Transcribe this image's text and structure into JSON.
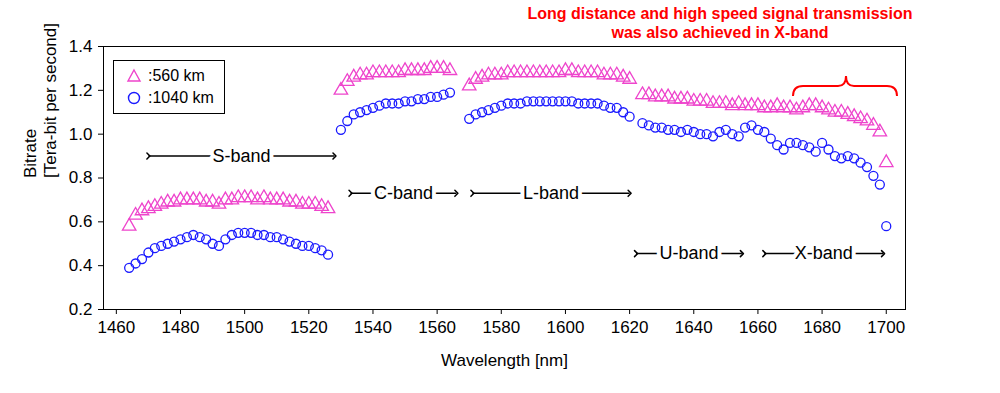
{
  "chart_data": {
    "type": "scatter",
    "x_label": "Wavelength [nm]",
    "y_label": "Bitrate\n[Tera-bit per second]",
    "annotation": "Long distance and high speed signal transmission was also achieved in X-band",
    "xlim": [
      1456,
      1706
    ],
    "xticks": [
      1460,
      1480,
      1500,
      1520,
      1540,
      1560,
      1580,
      1600,
      1620,
      1640,
      1660,
      1680,
      1700
    ],
    "ylim": [
      0.2,
      1.4
    ],
    "yticks": [
      0.2,
      0.4,
      0.6,
      0.8,
      {
        "value": 1,
        "label": "1.0"
      },
      1.2,
      1.4
    ],
    "grid": false,
    "legend": "top-left",
    "bands": [
      {
        "label": "S-band",
        "start": 1470,
        "end": 1528
      },
      {
        "label": "C-band",
        "start": 1533,
        "end": 1566
      },
      {
        "label": "L-band",
        "start": 1571,
        "end": 1620
      },
      {
        "label": "U-band",
        "start": 1622,
        "end": 1655
      },
      {
        "label": "X-band",
        "start": 1662,
        "end": 1699
      }
    ],
    "x": [
      1464,
      1466,
      1468,
      1470,
      1472,
      1474,
      1476,
      1478,
      1480,
      1482,
      1484,
      1486,
      1488,
      1490,
      1492,
      1494,
      1496,
      1498,
      1500,
      1502,
      1504,
      1506,
      1508,
      1510,
      1512,
      1514,
      1516,
      1518,
      1520,
      1522,
      1524,
      1526,
      1530,
      1532,
      1534,
      1536,
      1538,
      1540,
      1542,
      1544,
      1546,
      1548,
      1550,
      1552,
      1554,
      1556,
      1558,
      1560,
      1562,
      1564,
      1570,
      1572,
      1574,
      1576,
      1578,
      1580,
      1582,
      1584,
      1586,
      1588,
      1590,
      1592,
      1594,
      1596,
      1598,
      1600,
      1602,
      1604,
      1606,
      1608,
      1610,
      1612,
      1614,
      1616,
      1618,
      1620,
      1624,
      1626,
      1628,
      1630,
      1632,
      1634,
      1636,
      1638,
      1640,
      1642,
      1644,
      1646,
      1648,
      1650,
      1652,
      1654,
      1656,
      1658,
      1660,
      1662,
      1664,
      1666,
      1668,
      1670,
      1672,
      1674,
      1676,
      1678,
      1680,
      1682,
      1684,
      1686,
      1688,
      1690,
      1692,
      1694,
      1696,
      1698,
      1700
    ],
    "series": [
      {
        "name": ":560 km",
        "color": "#ee44cc",
        "marker": "triangle",
        "values": [
          0.58,
          0.63,
          0.65,
          0.66,
          0.67,
          0.68,
          0.69,
          0.69,
          0.7,
          0.7,
          0.7,
          0.7,
          0.69,
          0.69,
          0.68,
          0.7,
          0.7,
          0.71,
          0.71,
          0.71,
          0.7,
          0.71,
          0.7,
          0.7,
          0.7,
          0.69,
          0.69,
          0.68,
          0.68,
          0.68,
          0.67,
          0.66,
          1.2,
          1.24,
          1.26,
          1.27,
          1.27,
          1.28,
          1.28,
          1.28,
          1.28,
          1.28,
          1.29,
          1.29,
          1.29,
          1.29,
          1.3,
          1.3,
          1.3,
          1.29,
          1.22,
          1.25,
          1.26,
          1.27,
          1.27,
          1.27,
          1.28,
          1.28,
          1.28,
          1.28,
          1.28,
          1.28,
          1.28,
          1.28,
          1.28,
          1.29,
          1.29,
          1.28,
          1.28,
          1.28,
          1.28,
          1.27,
          1.27,
          1.27,
          1.26,
          1.25,
          1.18,
          1.18,
          1.17,
          1.17,
          1.17,
          1.16,
          1.16,
          1.16,
          1.15,
          1.15,
          1.15,
          1.14,
          1.14,
          1.14,
          1.13,
          1.14,
          1.13,
          1.13,
          1.13,
          1.12,
          1.12,
          1.13,
          1.12,
          1.12,
          1.11,
          1.12,
          1.13,
          1.13,
          1.12,
          1.11,
          1.1,
          1.1,
          1.09,
          1.08,
          1.07,
          1.06,
          1.04,
          1.01,
          0.87
        ]
      },
      {
        "name": ":1040 km",
        "color": "#1a1aff",
        "marker": "circle",
        "values": [
          0.39,
          0.41,
          0.43,
          0.46,
          0.48,
          0.49,
          0.5,
          0.51,
          0.52,
          0.53,
          0.54,
          0.53,
          0.52,
          0.5,
          0.49,
          0.52,
          0.54,
          0.55,
          0.55,
          0.55,
          0.54,
          0.54,
          0.53,
          0.53,
          0.52,
          0.51,
          0.5,
          0.49,
          0.49,
          0.48,
          0.47,
          0.45,
          1.02,
          1.06,
          1.09,
          1.1,
          1.11,
          1.12,
          1.13,
          1.14,
          1.14,
          1.14,
          1.15,
          1.15,
          1.16,
          1.16,
          1.17,
          1.17,
          1.18,
          1.19,
          1.07,
          1.09,
          1.1,
          1.11,
          1.12,
          1.13,
          1.14,
          1.14,
          1.14,
          1.15,
          1.15,
          1.15,
          1.15,
          1.15,
          1.15,
          1.15,
          1.15,
          1.14,
          1.14,
          1.14,
          1.14,
          1.13,
          1.12,
          1.12,
          1.1,
          1.08,
          1.05,
          1.04,
          1.03,
          1.03,
          1.02,
          1.02,
          1.01,
          1.02,
          1.01,
          1.0,
          1.0,
          0.99,
          1.01,
          1.02,
          1.0,
          0.99,
          1.03,
          1.04,
          1.02,
          1.01,
          0.98,
          0.95,
          0.93,
          0.96,
          0.96,
          0.95,
          0.94,
          0.92,
          0.96,
          0.93,
          0.9,
          0.89,
          0.9,
          0.89,
          0.87,
          0.85,
          0.81,
          0.77,
          0.58
        ]
      }
    ]
  }
}
